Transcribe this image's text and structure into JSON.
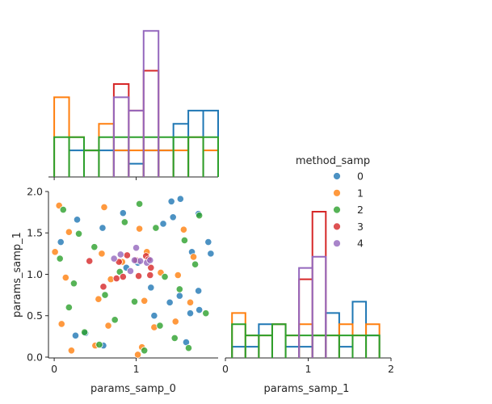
{
  "chart_data": {
    "type": "scatter",
    "layout": "corner-pairplot",
    "scatter": {
      "xlabel": "params_samp_0",
      "ylabel": "params_samp_1",
      "xlim": [
        -0.07,
        2.0
      ],
      "ylim": [
        -0.01,
        2.0
      ],
      "xticks": [
        0,
        1
      ],
      "yticks": [
        0.0,
        0.5,
        1.0,
        1.5,
        2.0
      ],
      "ytick_labels": [
        "0.0",
        "0.5",
        "1.0",
        "1.5",
        "2.0"
      ],
      "points": [
        {
          "x": 0.08,
          "y": 1.39,
          "method": 0
        },
        {
          "x": 0.28,
          "y": 1.66,
          "method": 0
        },
        {
          "x": 0.59,
          "y": 1.56,
          "method": 0
        },
        {
          "x": 0.26,
          "y": 0.26,
          "method": 0
        },
        {
          "x": 0.38,
          "y": 0.29,
          "method": 0
        },
        {
          "x": 0.84,
          "y": 1.74,
          "method": 0
        },
        {
          "x": 1.18,
          "y": 0.84,
          "method": 0
        },
        {
          "x": 1.22,
          "y": 0.5,
          "method": 0
        },
        {
          "x": 1.33,
          "y": 1.61,
          "method": 0
        },
        {
          "x": 1.43,
          "y": 1.88,
          "method": 0
        },
        {
          "x": 1.54,
          "y": 1.91,
          "method": 0
        },
        {
          "x": 1.45,
          "y": 1.69,
          "method": 0
        },
        {
          "x": 1.41,
          "y": 0.66,
          "method": 0
        },
        {
          "x": 1.53,
          "y": 0.74,
          "method": 0
        },
        {
          "x": 1.68,
          "y": 1.27,
          "method": 0
        },
        {
          "x": 1.66,
          "y": 0.53,
          "method": 0
        },
        {
          "x": 1.77,
          "y": 0.57,
          "method": 0
        },
        {
          "x": 1.76,
          "y": 0.8,
          "method": 0
        },
        {
          "x": 1.88,
          "y": 1.39,
          "method": 0
        },
        {
          "x": 1.91,
          "y": 1.25,
          "method": 0
        },
        {
          "x": 1.61,
          "y": 0.18,
          "method": 0
        },
        {
          "x": 0.6,
          "y": 0.14,
          "method": 0
        },
        {
          "x": 0.88,
          "y": 1.08,
          "method": 0
        },
        {
          "x": 1.02,
          "y": 1.14,
          "method": 0
        },
        {
          "x": 1.76,
          "y": 1.73,
          "method": 0
        },
        {
          "x": 0.06,
          "y": 1.83,
          "method": 1
        },
        {
          "x": 0.01,
          "y": 1.27,
          "method": 1
        },
        {
          "x": 0.14,
          "y": 0.96,
          "method": 1
        },
        {
          "x": 0.18,
          "y": 1.51,
          "method": 1
        },
        {
          "x": 0.09,
          "y": 0.4,
          "method": 1
        },
        {
          "x": 0.21,
          "y": 0.08,
          "method": 1
        },
        {
          "x": 0.5,
          "y": 0.14,
          "method": 1
        },
        {
          "x": 0.54,
          "y": 0.7,
          "method": 1
        },
        {
          "x": 0.58,
          "y": 1.25,
          "method": 1
        },
        {
          "x": 0.61,
          "y": 1.81,
          "method": 1
        },
        {
          "x": 0.66,
          "y": 0.38,
          "method": 1
        },
        {
          "x": 0.69,
          "y": 0.94,
          "method": 1
        },
        {
          "x": 0.83,
          "y": 1.15,
          "method": 1
        },
        {
          "x": 1.04,
          "y": 1.55,
          "method": 1
        },
        {
          "x": 1.07,
          "y": 0.12,
          "method": 1
        },
        {
          "x": 1.1,
          "y": 0.68,
          "method": 1
        },
        {
          "x": 1.13,
          "y": 1.27,
          "method": 1
        },
        {
          "x": 1.22,
          "y": 0.36,
          "method": 1
        },
        {
          "x": 1.3,
          "y": 1.02,
          "method": 1
        },
        {
          "x": 1.51,
          "y": 0.99,
          "method": 1
        },
        {
          "x": 1.48,
          "y": 0.43,
          "method": 1
        },
        {
          "x": 1.58,
          "y": 1.54,
          "method": 1
        },
        {
          "x": 1.66,
          "y": 0.66,
          "method": 1
        },
        {
          "x": 1.7,
          "y": 1.21,
          "method": 1
        },
        {
          "x": 1.02,
          "y": 0.03,
          "method": 1
        },
        {
          "x": 0.11,
          "y": 1.78,
          "method": 2
        },
        {
          "x": 0.07,
          "y": 1.19,
          "method": 2
        },
        {
          "x": 0.18,
          "y": 0.6,
          "method": 2
        },
        {
          "x": 0.24,
          "y": 0.89,
          "method": 2
        },
        {
          "x": 0.3,
          "y": 1.49,
          "method": 2
        },
        {
          "x": 0.37,
          "y": 0.3,
          "method": 2
        },
        {
          "x": 0.49,
          "y": 1.33,
          "method": 2
        },
        {
          "x": 0.55,
          "y": 0.15,
          "method": 2
        },
        {
          "x": 0.62,
          "y": 0.75,
          "method": 2
        },
        {
          "x": 0.74,
          "y": 0.45,
          "method": 2
        },
        {
          "x": 0.8,
          "y": 1.03,
          "method": 2
        },
        {
          "x": 0.86,
          "y": 1.63,
          "method": 2
        },
        {
          "x": 0.98,
          "y": 0.67,
          "method": 2
        },
        {
          "x": 1.04,
          "y": 1.85,
          "method": 2
        },
        {
          "x": 1.1,
          "y": 0.08,
          "method": 2
        },
        {
          "x": 1.24,
          "y": 1.56,
          "method": 2
        },
        {
          "x": 1.29,
          "y": 0.38,
          "method": 2
        },
        {
          "x": 1.35,
          "y": 0.97,
          "method": 2
        },
        {
          "x": 1.47,
          "y": 0.23,
          "method": 2
        },
        {
          "x": 1.53,
          "y": 0.82,
          "method": 2
        },
        {
          "x": 1.59,
          "y": 1.41,
          "method": 2
        },
        {
          "x": 1.72,
          "y": 1.12,
          "method": 2
        },
        {
          "x": 1.77,
          "y": 1.71,
          "method": 2
        },
        {
          "x": 1.85,
          "y": 0.53,
          "method": 2
        },
        {
          "x": 1.64,
          "y": 0.11,
          "method": 2
        },
        {
          "x": 0.43,
          "y": 1.16,
          "method": 3
        },
        {
          "x": 0.6,
          "y": 0.85,
          "method": 3
        },
        {
          "x": 0.76,
          "y": 0.95,
          "method": 3
        },
        {
          "x": 0.79,
          "y": 1.15,
          "method": 3
        },
        {
          "x": 0.84,
          "y": 0.97,
          "method": 3
        },
        {
          "x": 1.03,
          "y": 0.98,
          "method": 3
        },
        {
          "x": 1.12,
          "y": 1.22,
          "method": 3
        },
        {
          "x": 1.15,
          "y": 1.18,
          "method": 3
        },
        {
          "x": 1.18,
          "y": 1.08,
          "method": 3
        },
        {
          "x": 1.17,
          "y": 0.99,
          "method": 3
        },
        {
          "x": 1.0,
          "y": 1.17,
          "method": 3
        },
        {
          "x": 0.89,
          "y": 1.23,
          "method": 3
        },
        {
          "x": 0.73,
          "y": 1.19,
          "method": 4
        },
        {
          "x": 0.81,
          "y": 1.24,
          "method": 4
        },
        {
          "x": 0.93,
          "y": 1.04,
          "method": 4
        },
        {
          "x": 1.0,
          "y": 1.32,
          "method": 4
        },
        {
          "x": 1.05,
          "y": 1.16,
          "method": 4
        },
        {
          "x": 1.13,
          "y": 1.14,
          "method": 4
        },
        {
          "x": 1.17,
          "y": 1.17,
          "method": 4
        },
        {
          "x": 0.98,
          "y": 1.17,
          "method": 4
        }
      ]
    },
    "top_hist": {
      "bin_edges": [
        0.0,
        0.1818,
        0.3636,
        0.5455,
        0.7273,
        0.9091,
        1.0909,
        1.2727,
        1.4545,
        1.6364,
        1.8182,
        2.0
      ],
      "series": [
        {
          "method": 0,
          "counts": [
            0,
            2,
            2,
            2,
            2,
            1,
            2,
            2,
            4,
            5,
            5
          ]
        },
        {
          "method": 1,
          "counts": [
            6,
            3,
            2,
            4,
            2,
            2,
            2,
            2,
            2,
            3,
            2
          ]
        },
        {
          "method": 2,
          "counts": [
            3,
            3,
            2,
            3,
            3,
            3,
            3,
            3,
            3,
            3,
            3
          ]
        },
        {
          "method": 3,
          "counts": [
            0,
            0,
            0,
            0,
            7,
            5,
            8,
            0,
            0,
            0,
            0
          ]
        },
        {
          "method": 4,
          "counts": [
            0,
            0,
            0,
            0,
            6,
            5,
            11,
            0,
            0,
            0,
            0
          ]
        }
      ],
      "max_count": 11.5
    },
    "right_hist": {
      "xlabel": "params_samp_1",
      "xlim": [
        0,
        2
      ],
      "xticks": [
        0,
        1,
        2
      ],
      "bin_edges": [
        0.08,
        0.2418,
        0.4036,
        0.5655,
        0.7273,
        0.8891,
        1.0509,
        1.2127,
        1.3745,
        1.5364,
        1.6982,
        1.86
      ],
      "series": [
        {
          "method": 0,
          "counts": [
            1,
            1,
            3,
            3,
            1,
            1,
            2,
            4,
            1,
            5,
            2
          ]
        },
        {
          "method": 1,
          "counts": [
            4,
            2,
            2,
            3,
            2,
            3,
            2,
            2,
            3,
            2,
            3
          ]
        },
        {
          "method": 2,
          "counts": [
            3,
            2,
            2,
            3,
            2,
            2,
            2,
            2,
            2,
            2,
            2
          ]
        },
        {
          "method": 3,
          "counts": [
            0,
            0,
            0,
            0,
            0,
            7,
            13,
            0,
            0,
            0,
            0
          ]
        },
        {
          "method": 4,
          "counts": [
            0,
            0,
            0,
            0,
            0,
            8,
            9,
            0,
            0,
            0,
            0
          ]
        }
      ],
      "ylim": [
        0,
        14.8
      ]
    },
    "legend": {
      "title": "method_samp",
      "entries": [
        {
          "label": "0",
          "color": "#1f77b4"
        },
        {
          "label": "1",
          "color": "#ff7f0e"
        },
        {
          "label": "2",
          "color": "#2ca02c"
        },
        {
          "label": "3",
          "color": "#d62728"
        },
        {
          "label": "4",
          "color": "#9467bd"
        }
      ],
      "placement": "upper-right"
    },
    "point_alpha": 0.8,
    "point_edge": "#ffffff"
  }
}
